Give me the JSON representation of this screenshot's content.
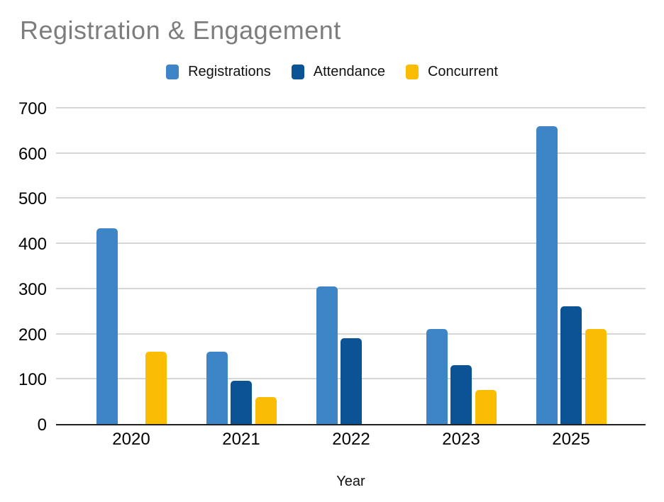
{
  "page": {
    "background": "#ffffff"
  },
  "chart_data": {
    "type": "bar",
    "title": "Registration & Engagement",
    "title_color": "#7d7d7d",
    "xlabel": "Year",
    "ylabel": "",
    "categories": [
      "2020",
      "2021",
      "2022",
      "2023",
      "2025"
    ],
    "series": [
      {
        "name": "Registrations",
        "color": "#3d85c6",
        "values": [
          433,
          160,
          305,
          210,
          660
        ]
      },
      {
        "name": "Attendance",
        "color": "#0b5394",
        "values": [
          0,
          95,
          190,
          130,
          260
        ]
      },
      {
        "name": "Concurrent",
        "color": "#fbbc04",
        "values": [
          160,
          60,
          0,
          75,
          210
        ]
      }
    ],
    "ylim": [
      0,
      700
    ],
    "ytick_step": 100,
    "yticks": [
      0,
      100,
      200,
      300,
      400,
      500,
      600,
      700
    ],
    "grid": true,
    "gridline_color": "#d6d6d6",
    "axis_color": "#222222",
    "legend_position": "top",
    "missing_bars": [
      "Attendance 2020",
      "Concurrent 2022"
    ]
  }
}
